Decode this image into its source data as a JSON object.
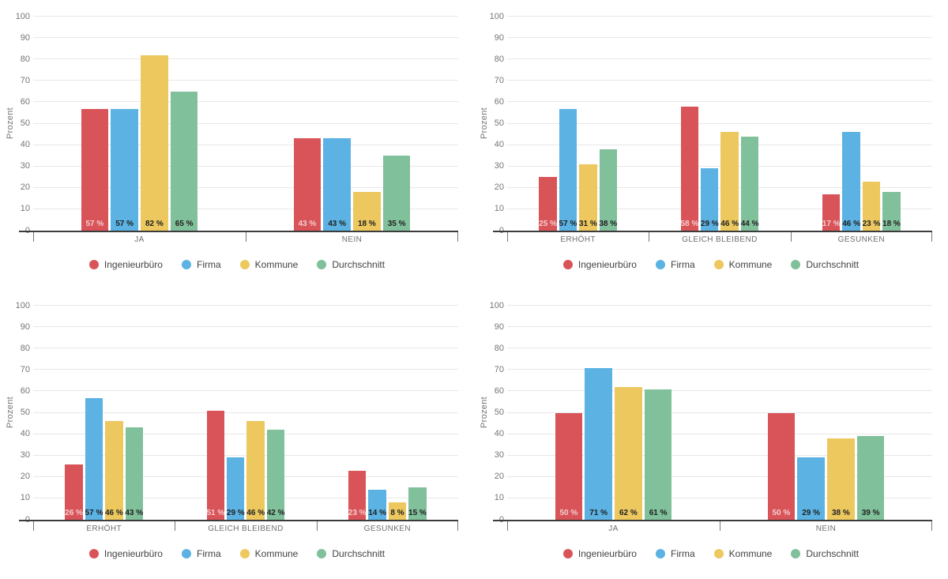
{
  "page": {
    "background": "#ffffff"
  },
  "colors": {
    "series": [
      "#D95459",
      "#5BB2E3",
      "#ECC85F",
      "#80C09A"
    ],
    "grid": "#E8E8E8",
    "axis_line": "#3C3C3C",
    "axis_tick": "#777777",
    "tick_label_text": "#757575",
    "category_label_text": "#6F6F6F",
    "legend_text": "#424242",
    "value_label_dark": "#212121",
    "value_label_on_red": "#F2CED0"
  },
  "chart_data": [
    {
      "type": "bar",
      "position": "top-left",
      "ylabel": "Prozent",
      "ylim": [
        0,
        100
      ],
      "yticks": [
        "0",
        "10",
        "20",
        "30",
        "40",
        "50",
        "60",
        "70",
        "80",
        "90",
        "100"
      ],
      "grid": true,
      "legend_position": "bottom",
      "value_suffix": " %",
      "categories": [
        "JA",
        "NEIN"
      ],
      "series": [
        {
          "name": "Ingenieurbüro",
          "values": [
            57,
            43
          ],
          "labels": [
            "57 %",
            "43 %"
          ]
        },
        {
          "name": "Firma",
          "values": [
            57,
            43
          ],
          "labels": [
            "57 %",
            "43 %"
          ]
        },
        {
          "name": "Kommune",
          "values": [
            82,
            18
          ],
          "labels": [
            "82 %",
            "18 %"
          ]
        },
        {
          "name": "Durchschnitt",
          "values": [
            65,
            35
          ],
          "labels": [
            "65 %",
            "35 %"
          ]
        }
      ]
    },
    {
      "type": "bar",
      "position": "top-right",
      "ylabel": "Prozent",
      "ylim": [
        0,
        100
      ],
      "yticks": [
        "0",
        "10",
        "20",
        "30",
        "40",
        "50",
        "60",
        "70",
        "80",
        "90",
        "100"
      ],
      "grid": true,
      "legend_position": "bottom",
      "value_suffix": " %",
      "categories": [
        "ERHÖHT",
        "GLEICH BLEIBEND",
        "GESUNKEN"
      ],
      "series": [
        {
          "name": "Ingenieurbüro",
          "values": [
            25,
            58,
            17
          ],
          "labels": [
            "25 %",
            "58 %",
            "17 %"
          ]
        },
        {
          "name": "Firma",
          "values": [
            57,
            29,
            46
          ],
          "labels": [
            "57 %",
            "29 %",
            "46 %"
          ]
        },
        {
          "name": "Kommune",
          "values": [
            31,
            46,
            23
          ],
          "labels": [
            "31 %",
            "46 %",
            "23 %"
          ]
        },
        {
          "name": "Durchschnitt",
          "values": [
            38,
            44,
            18
          ],
          "labels": [
            "38 %",
            "44 %",
            "18 %"
          ]
        }
      ]
    },
    {
      "type": "bar",
      "position": "bottom-left",
      "ylabel": "Prozent",
      "ylim": [
        0,
        100
      ],
      "yticks": [
        "0",
        "10",
        "20",
        "30",
        "40",
        "50",
        "60",
        "70",
        "80",
        "90",
        "100"
      ],
      "grid": true,
      "legend_position": "bottom",
      "value_suffix": " %",
      "categories": [
        "ERHÖHT",
        "GLEICH BLEIBEND",
        "GESUNKEN"
      ],
      "series": [
        {
          "name": "Ingenieurbüro",
          "values": [
            26,
            51,
            23
          ],
          "labels": [
            "26 %",
            "51 %",
            "23 %"
          ]
        },
        {
          "name": "Firma",
          "values": [
            57,
            29,
            14
          ],
          "labels": [
            "57 %",
            "29 %",
            "14 %"
          ]
        },
        {
          "name": "Kommune",
          "values": [
            46,
            46,
            8
          ],
          "labels": [
            "46 %",
            "46 %",
            "8 %"
          ]
        },
        {
          "name": "Durchschnitt",
          "values": [
            43,
            42,
            15
          ],
          "labels": [
            "43 %",
            "42 %",
            "15 %"
          ]
        }
      ]
    },
    {
      "type": "bar",
      "position": "bottom-right",
      "ylabel": "Prozent",
      "ylim": [
        0,
        100
      ],
      "yticks": [
        "0",
        "10",
        "20",
        "30",
        "40",
        "50",
        "60",
        "70",
        "80",
        "90",
        "100"
      ],
      "grid": true,
      "legend_position": "bottom",
      "value_suffix": " %",
      "categories": [
        "JA",
        "NEIN"
      ],
      "series": [
        {
          "name": "Ingenieurbüro",
          "values": [
            50,
            50
          ],
          "labels": [
            "50 %",
            "50 %"
          ]
        },
        {
          "name": "Firma",
          "values": [
            71,
            29
          ],
          "labels": [
            "71 %",
            "29 %"
          ]
        },
        {
          "name": "Kommune",
          "values": [
            62,
            38
          ],
          "labels": [
            "62 %",
            "38 %"
          ]
        },
        {
          "name": "Durchschnitt",
          "values": [
            61,
            39
          ],
          "labels": [
            "61 %",
            "39 %"
          ]
        }
      ]
    }
  ]
}
